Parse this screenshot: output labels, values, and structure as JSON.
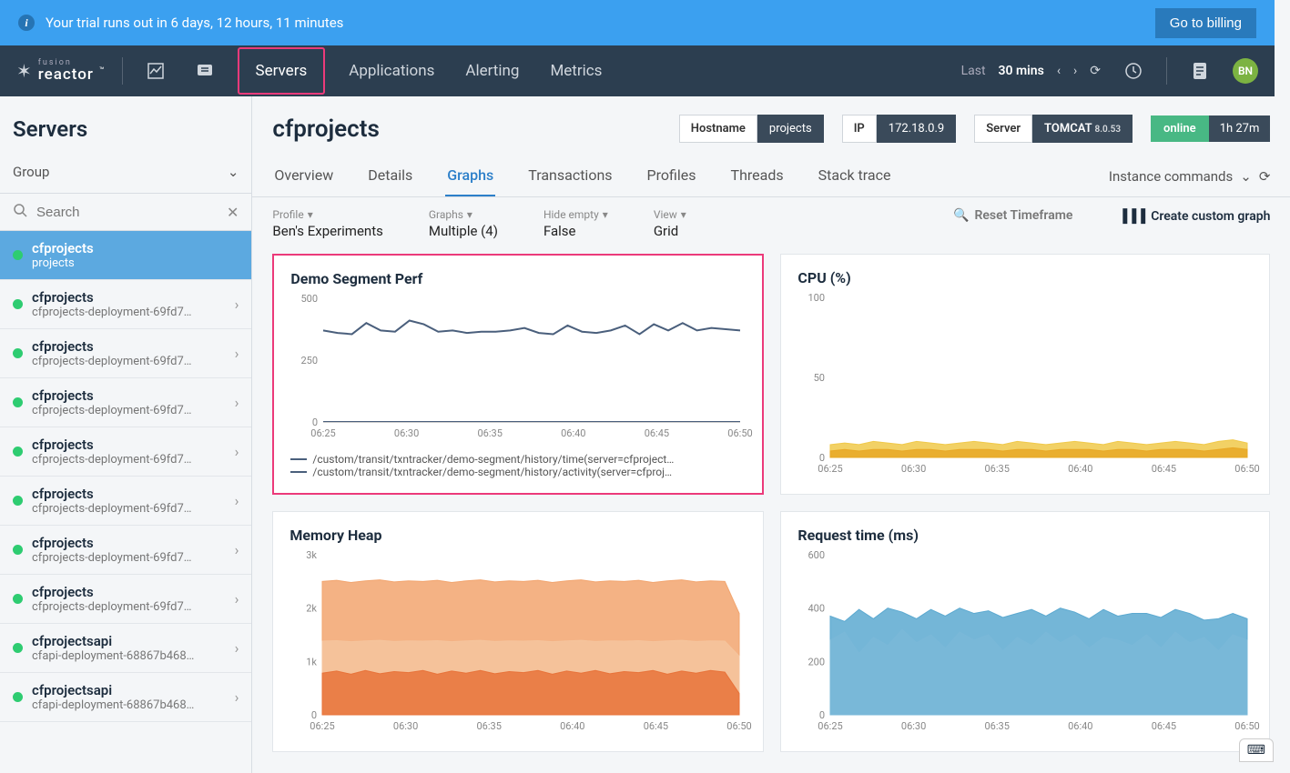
{
  "trial": {
    "text": "Your trial runs out in 6 days, 12 hours, 11 minutes",
    "button": "Go to billing"
  },
  "logo": {
    "top": "fusion",
    "bottom": "reactor"
  },
  "nav": {
    "servers": "Servers",
    "applications": "Applications",
    "alerting": "Alerting",
    "metrics": "Metrics"
  },
  "timeRange": {
    "label": "Last",
    "value": "30 mins"
  },
  "avatar": "BN",
  "sidebar": {
    "title": "Servers",
    "group": "Group",
    "searchPlaceholder": "Search",
    "items": [
      {
        "name": "cfprojects",
        "sub": "projects",
        "selected": true
      },
      {
        "name": "cfprojects",
        "sub": "cfprojects-deployment-69fd7…"
      },
      {
        "name": "cfprojects",
        "sub": "cfprojects-deployment-69fd7…"
      },
      {
        "name": "cfprojects",
        "sub": "cfprojects-deployment-69fd7…"
      },
      {
        "name": "cfprojects",
        "sub": "cfprojects-deployment-69fd7…"
      },
      {
        "name": "cfprojects",
        "sub": "cfprojects-deployment-69fd7…"
      },
      {
        "name": "cfprojects",
        "sub": "cfprojects-deployment-69fd7…"
      },
      {
        "name": "cfprojects",
        "sub": "cfprojects-deployment-69fd7…"
      },
      {
        "name": "cfprojectsapi",
        "sub": "cfapi-deployment-68867b468…"
      },
      {
        "name": "cfprojectsapi",
        "sub": "cfapi-deployment-68867b468…"
      }
    ]
  },
  "header": {
    "title": "cfprojects",
    "hostnameLabel": "Hostname",
    "hostname": "projects",
    "ipLabel": "IP",
    "ip": "172.18.0.9",
    "serverLabel": "Server",
    "server": "TOMCAT",
    "serverVer": "8.0.53",
    "status": "online",
    "uptime": "1h 27m"
  },
  "tabs": {
    "overview": "Overview",
    "details": "Details",
    "graphs": "Graphs",
    "transactions": "Transactions",
    "profiles": "Profiles",
    "threads": "Threads",
    "stacktrace": "Stack trace",
    "commands": "Instance commands"
  },
  "filters": {
    "profile": {
      "label": "Profile",
      "value": "Ben's Experiments"
    },
    "graphs": {
      "label": "Graphs",
      "value": "Multiple (4)"
    },
    "hideEmpty": {
      "label": "Hide empty",
      "value": "False"
    },
    "view": {
      "label": "View",
      "value": "Grid"
    },
    "reset": "Reset Timeframe",
    "create": "Create custom graph"
  },
  "xTicks": [
    "06:25",
    "06:30",
    "06:35",
    "06:40",
    "06:45",
    "06:50"
  ],
  "chart1": {
    "title": "Demo Segment Perf",
    "ylim": [
      0,
      500
    ],
    "yticks": [
      0,
      250,
      500
    ],
    "series1": {
      "color": "#4a5f7c",
      "width": 2,
      "values": [
        370,
        360,
        355,
        400,
        370,
        365,
        410,
        395,
        365,
        370,
        360,
        365,
        365,
        370,
        380,
        360,
        355,
        390,
        365,
        360,
        370,
        390,
        355,
        395,
        370,
        400,
        370,
        380,
        375,
        370
      ]
    },
    "series2": {
      "color": "#4a5f7c",
      "width": 1,
      "values": [
        2,
        2,
        2,
        2,
        2,
        2,
        2,
        2,
        2,
        2,
        2,
        2,
        2,
        2,
        2,
        2,
        2,
        2,
        2,
        2,
        2,
        2,
        2,
        2,
        2,
        2,
        2,
        2,
        2,
        2
      ]
    },
    "legend1": "/custom/transit/txntracker/demo-segment/history/time(server=cfproject…",
    "legend2": "/custom/transit/txntracker/demo-segment/history/activity(server=cfproj…"
  },
  "chart2": {
    "title": "CPU (%)",
    "ylim": [
      0,
      100
    ],
    "yticks": [
      0,
      50,
      100
    ],
    "seriesA": {
      "color": "#f0c94a",
      "values": [
        8,
        9,
        8,
        10,
        9,
        8,
        10,
        9,
        8,
        9,
        10,
        9,
        8,
        10,
        9,
        8,
        9,
        10,
        9,
        8,
        10,
        9,
        8,
        9,
        10,
        9,
        8,
        10,
        11,
        9
      ]
    },
    "seriesB": {
      "color": "#e8a826",
      "values": [
        4,
        5,
        4,
        5,
        5,
        4,
        5,
        5,
        4,
        5,
        5,
        5,
        4,
        5,
        5,
        4,
        5,
        5,
        5,
        4,
        5,
        5,
        4,
        5,
        5,
        5,
        4,
        5,
        6,
        5
      ]
    }
  },
  "chart3": {
    "title": "Memory Heap",
    "ylim": [
      0,
      3000
    ],
    "yticks": [
      0,
      1000,
      2000,
      3000
    ],
    "ytickLabels": [
      "0",
      "1k",
      "2k",
      "3k"
    ],
    "seriesA": {
      "color": "#f2a56f",
      "values": [
        2500,
        2520,
        2480,
        2510,
        2530,
        2490,
        2510,
        2500,
        2520,
        2480,
        2510,
        2530,
        2490,
        2510,
        2500,
        2520,
        2480,
        2510,
        2530,
        2490,
        2510,
        2500,
        2520,
        2480,
        2510,
        2530,
        2490,
        2510,
        2500,
        1900
      ]
    },
    "seriesB": {
      "color": "#f5c49d",
      "values": [
        1380,
        1390,
        1370,
        1385,
        1395,
        1375,
        1385,
        1380,
        1390,
        1370,
        1385,
        1395,
        1375,
        1385,
        1380,
        1390,
        1370,
        1385,
        1395,
        1375,
        1385,
        1380,
        1390,
        1370,
        1385,
        1395,
        1375,
        1385,
        1380,
        1100
      ]
    },
    "seriesC": {
      "color": "#e8733a",
      "values": [
        780,
        820,
        760,
        830,
        770,
        810,
        790,
        830,
        760,
        820,
        780,
        830,
        770,
        810,
        790,
        830,
        760,
        820,
        780,
        830,
        770,
        810,
        790,
        830,
        760,
        820,
        780,
        830,
        800,
        400
      ]
    }
  },
  "chart4": {
    "title": "Request time (ms)",
    "ylim": [
      0,
      600
    ],
    "yticks": [
      0,
      200,
      400,
      600
    ],
    "seriesA": {
      "color": "#5ca9d0",
      "values": [
        370,
        350,
        395,
        360,
        400,
        385,
        360,
        395,
        370,
        400,
        380,
        390,
        365,
        380,
        395,
        370,
        400,
        385,
        360,
        395,
        370,
        380,
        380,
        365,
        395,
        380,
        355,
        360,
        380,
        360
      ]
    },
    "seriesB": {
      "color": "#7ab8d8",
      "values": [
        280,
        310,
        230,
        290,
        260,
        320,
        270,
        300,
        250,
        310,
        280,
        300,
        240,
        290,
        260,
        310,
        270,
        300,
        250,
        290,
        280,
        260,
        300,
        250,
        310,
        270,
        290,
        240,
        300,
        280
      ]
    }
  }
}
